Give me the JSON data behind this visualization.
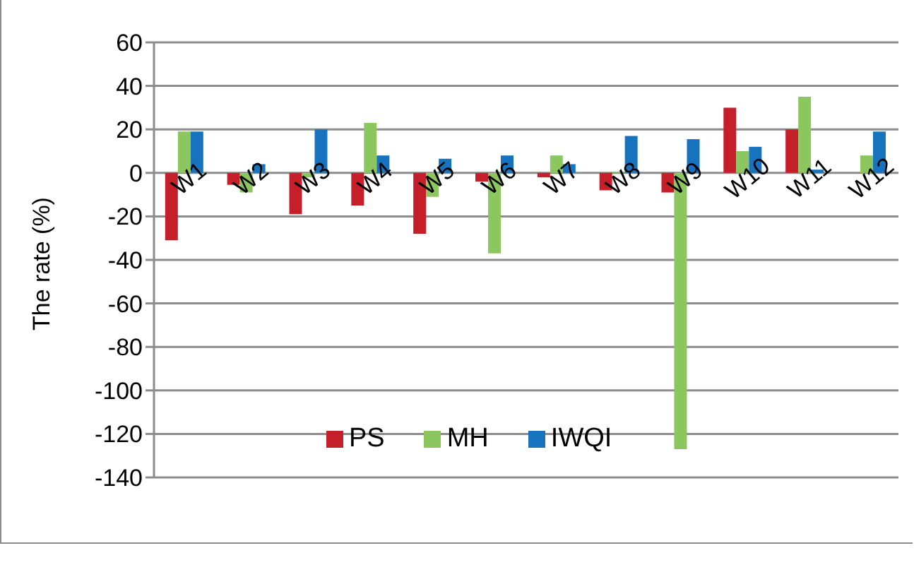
{
  "chart_data": {
    "type": "bar",
    "ylabel": "The rate (%)",
    "categories": [
      "W1",
      "W2",
      "W3",
      "W4",
      "W5",
      "W6",
      "W7",
      "W8",
      "W9",
      "W10",
      "W11",
      "W12"
    ],
    "series": [
      {
        "name": "PS",
        "color": "#c5202a",
        "values": [
          -31,
          -5.5,
          -19,
          -15,
          -28,
          -4,
          -2,
          -8,
          -9,
          30,
          20,
          null
        ]
      },
      {
        "name": "MH",
        "color": "#8cc65e",
        "values": [
          19,
          -9,
          -2,
          23,
          -11,
          -37,
          8,
          0.5,
          -127,
          10,
          35,
          8
        ]
      },
      {
        "name": "IWQI",
        "color": "#1873be",
        "values": [
          19,
          4,
          20,
          8,
          6.5,
          8,
          4,
          17,
          15.5,
          12,
          1.5,
          19
        ]
      }
    ],
    "ylim": [
      -140,
      60
    ],
    "yticks": [
      -140,
      -120,
      -100,
      -80,
      -60,
      -40,
      -20,
      0,
      20,
      40,
      60
    ],
    "grid": "y",
    "legend": "bottom"
  }
}
